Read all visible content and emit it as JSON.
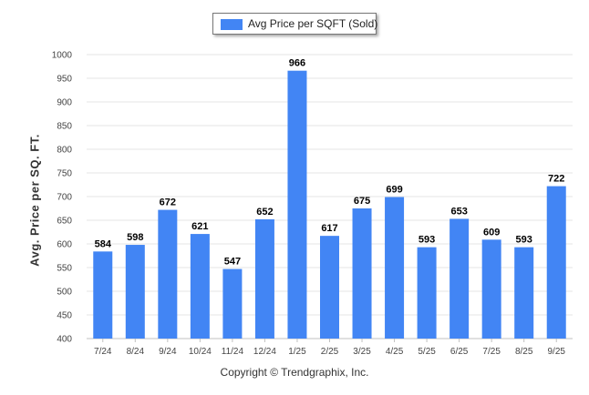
{
  "chart_data": {
    "type": "bar",
    "legend": "Avg Price per SQFT (Sold)",
    "legend_position": "top-center",
    "ylabel": "Avg. Price per SQ. FT.",
    "xlabel": "",
    "ylim": [
      400,
      1000
    ],
    "ytick_step": 50,
    "yticks": [
      "400",
      "450",
      "500",
      "550",
      "600",
      "650",
      "700",
      "750",
      "800",
      "850",
      "900",
      "950",
      "1000"
    ],
    "grid": true,
    "categories": [
      "7/24",
      "8/24",
      "9/24",
      "10/24",
      "11/24",
      "12/24",
      "1/25",
      "2/25",
      "3/25",
      "4/25",
      "5/25",
      "6/25",
      "7/25",
      "8/25",
      "9/25"
    ],
    "series": [
      {
        "name": "Avg Price per SQFT (Sold)",
        "values": [
          584,
          598,
          672,
          621,
          547,
          652,
          966,
          617,
          675,
          699,
          593,
          653,
          609,
          593,
          722
        ]
      }
    ],
    "colors": {
      "bar": "#4285f4",
      "grid": "#e6e6e6",
      "axis": "#c0c0c0"
    }
  },
  "footer": {
    "copyright": "Copyright © Trendgraphix, Inc."
  }
}
